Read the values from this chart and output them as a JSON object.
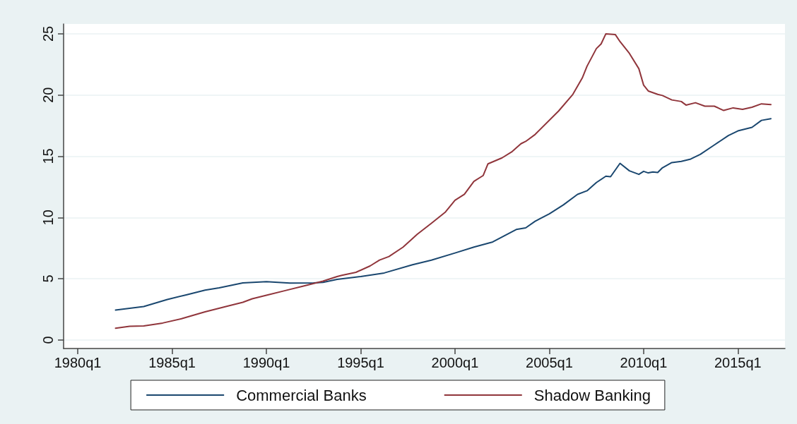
{
  "chart_data": {
    "type": "line",
    "xlim": [
      "1979-04",
      "2017-07"
    ],
    "xticks": [
      {
        "value": "1980-01",
        "label": "1980q1"
      },
      {
        "value": "1985-01",
        "label": "1985q1"
      },
      {
        "value": "1990-01",
        "label": "1990q1"
      },
      {
        "value": "1995-01",
        "label": "1995q1"
      },
      {
        "value": "2000-01",
        "label": "2000q1"
      },
      {
        "value": "2005-01",
        "label": "2005q1"
      },
      {
        "value": "2010-01",
        "label": "2010q1"
      },
      {
        "value": "2015-01",
        "label": "2015q1"
      }
    ],
    "ylim": [
      -0.7,
      25.8
    ],
    "yticks": [
      0,
      5,
      10,
      15,
      20,
      25
    ],
    "grid": "y",
    "legend": "bottom",
    "marker": "none",
    "line_style": "solid",
    "series": [
      {
        "name": "Commercial Banks",
        "color": "#1a476f",
        "x": [
          "1982-01",
          "1983-07",
          "1984-10",
          "1985-10",
          "1986-10",
          "1987-07",
          "1988-10",
          "1990-01",
          "1991-04",
          "1992-07",
          "1993-01",
          "1993-10",
          "1995-01",
          "1996-04",
          "1997-10",
          "1998-10",
          "2000-01",
          "2001-01",
          "2002-01",
          "2003-04",
          "2003-10",
          "2004-04",
          "2005-01",
          "2005-10",
          "2006-07",
          "2007-01",
          "2007-07",
          "2008-01",
          "2008-04",
          "2008-10",
          "2009-04",
          "2009-10",
          "2010-01",
          "2010-04",
          "2010-07",
          "2010-10",
          "2011-01",
          "2011-07",
          "2012-01",
          "2012-07",
          "2013-01",
          "2013-10",
          "2014-07",
          "2015-01",
          "2015-10",
          "2016-04",
          "2016-10"
        ],
        "values": [
          2.44,
          2.73,
          3.3,
          3.68,
          4.07,
          4.26,
          4.66,
          4.76,
          4.64,
          4.66,
          4.7,
          4.95,
          5.18,
          5.47,
          6.14,
          6.52,
          7.1,
          7.58,
          8.0,
          9.02,
          9.15,
          9.69,
          10.3,
          11.03,
          11.89,
          12.18,
          12.85,
          13.37,
          13.33,
          14.42,
          13.81,
          13.52,
          13.77,
          13.64,
          13.72,
          13.67,
          14.06,
          14.48,
          14.58,
          14.77,
          15.15,
          15.92,
          16.69,
          17.07,
          17.36,
          17.93,
          18.07
        ]
      },
      {
        "name": "Shadow Banking",
        "color": "#90353b",
        "x": [
          "1982-01",
          "1982-10",
          "1983-07",
          "1984-07",
          "1985-07",
          "1986-10",
          "1988-01",
          "1988-10",
          "1989-04",
          "1990-01",
          "1991-01",
          "1992-01",
          "1993-01",
          "1993-10",
          "1994-01",
          "1994-10",
          "1995-07",
          "1996-01",
          "1996-07",
          "1997-04",
          "1998-01",
          "1998-10",
          "1999-07",
          "2000-01",
          "2000-07",
          "2001-01",
          "2001-07",
          "2001-10",
          "2002-07",
          "2003-01",
          "2003-07",
          "2003-10",
          "2004-04",
          "2005-07",
          "2006-04",
          "2006-10",
          "2007-01",
          "2007-07",
          "2007-10",
          "2008-01",
          "2008-07",
          "2008-10",
          "2009-04",
          "2009-10",
          "2010-01",
          "2010-04",
          "2010-10",
          "2011-01",
          "2011-07",
          "2012-01",
          "2012-04",
          "2012-10",
          "2013-04",
          "2013-10",
          "2014-04",
          "2014-10",
          "2015-04",
          "2015-10",
          "2016-04",
          "2016-10"
        ],
        "values": [
          0.96,
          1.11,
          1.15,
          1.38,
          1.73,
          2.3,
          2.78,
          3.07,
          3.36,
          3.65,
          4.03,
          4.41,
          4.8,
          5.18,
          5.28,
          5.52,
          6.04,
          6.52,
          6.81,
          7.58,
          8.63,
          9.53,
          10.45,
          11.41,
          11.89,
          12.95,
          13.43,
          14.38,
          14.87,
          15.35,
          16.02,
          16.21,
          16.78,
          18.7,
          20.05,
          21.39,
          22.35,
          23.79,
          24.17,
          25.0,
          24.94,
          24.36,
          23.4,
          22.15,
          20.81,
          20.33,
          20.05,
          19.96,
          19.6,
          19.47,
          19.18,
          19.37,
          19.09,
          19.09,
          18.74,
          18.95,
          18.83,
          19.0,
          19.28,
          19.22
        ]
      }
    ]
  }
}
